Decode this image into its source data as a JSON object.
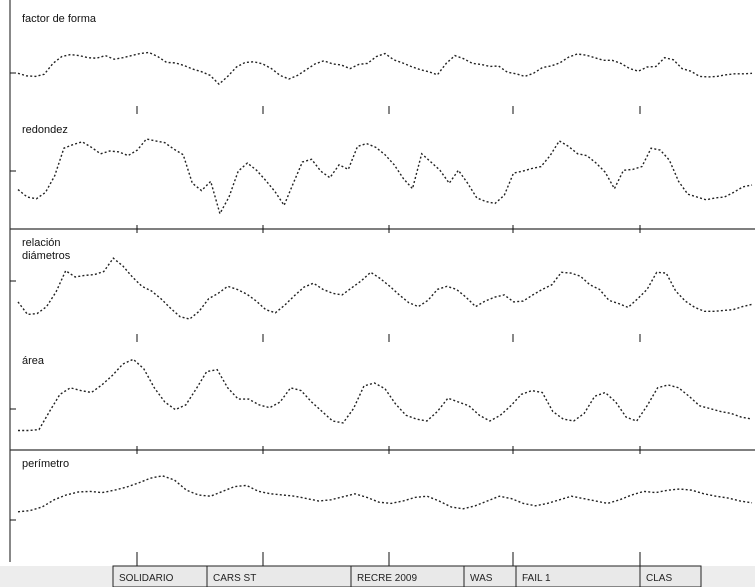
{
  "chart_data": {
    "type": "line",
    "panels": [
      {
        "title": "factor de forma",
        "y": [
          0.36,
          0.31,
          0.3,
          0.34,
          0.55,
          0.68,
          0.72,
          0.7,
          0.66,
          0.65,
          0.7,
          0.63,
          0.66,
          0.7,
          0.74,
          0.76,
          0.68,
          0.57,
          0.56,
          0.51,
          0.44,
          0.39,
          0.32,
          0.15,
          0.3,
          0.48,
          0.57,
          0.58,
          0.54,
          0.45,
          0.32,
          0.25,
          0.32,
          0.43,
          0.54,
          0.6,
          0.54,
          0.52,
          0.45,
          0.53,
          0.55,
          0.68,
          0.74,
          0.62,
          0.56,
          0.49,
          0.43,
          0.39,
          0.33,
          0.55,
          0.7,
          0.64,
          0.55,
          0.53,
          0.49,
          0.5,
          0.38,
          0.35,
          0.3,
          0.36,
          0.47,
          0.5,
          0.56,
          0.67,
          0.73,
          0.71,
          0.66,
          0.61,
          0.61,
          0.55,
          0.45,
          0.4,
          0.48,
          0.49,
          0.66,
          0.62,
          0.45,
          0.4,
          0.3,
          0.29,
          0.3,
          0.33,
          0.35,
          0.35,
          0.36
        ]
      },
      {
        "title": "redondez",
        "y": [
          0.33,
          0.25,
          0.23,
          0.3,
          0.48,
          0.78,
          0.82,
          0.85,
          0.79,
          0.72,
          0.75,
          0.74,
          0.7,
          0.76,
          0.88,
          0.86,
          0.84,
          0.77,
          0.71,
          0.4,
          0.32,
          0.42,
          0.07,
          0.25,
          0.53,
          0.62,
          0.54,
          0.43,
          0.31,
          0.16,
          0.4,
          0.63,
          0.66,
          0.53,
          0.46,
          0.6,
          0.55,
          0.8,
          0.83,
          0.79,
          0.71,
          0.6,
          0.45,
          0.34,
          0.72,
          0.63,
          0.54,
          0.4,
          0.54,
          0.4,
          0.24,
          0.2,
          0.18,
          0.27,
          0.51,
          0.53,
          0.56,
          0.58,
          0.7,
          0.86,
          0.8,
          0.72,
          0.7,
          0.62,
          0.52,
          0.34,
          0.54,
          0.55,
          0.58,
          0.78,
          0.76,
          0.65,
          0.42,
          0.28,
          0.25,
          0.22,
          0.24,
          0.25,
          0.3,
          0.36,
          0.38
        ]
      },
      {
        "title": "relación diámetros",
        "y": [
          0.36,
          0.2,
          0.21,
          0.3,
          0.49,
          0.76,
          0.68,
          0.7,
          0.71,
          0.75,
          0.92,
          0.82,
          0.68,
          0.56,
          0.5,
          0.4,
          0.28,
          0.17,
          0.14,
          0.24,
          0.4,
          0.47,
          0.56,
          0.52,
          0.46,
          0.37,
          0.26,
          0.22,
          0.32,
          0.44,
          0.55,
          0.6,
          0.52,
          0.47,
          0.45,
          0.54,
          0.63,
          0.74,
          0.66,
          0.56,
          0.45,
          0.35,
          0.3,
          0.38,
          0.52,
          0.56,
          0.52,
          0.42,
          0.3,
          0.37,
          0.42,
          0.45,
          0.36,
          0.37,
          0.45,
          0.52,
          0.58,
          0.74,
          0.73,
          0.69,
          0.58,
          0.52,
          0.38,
          0.34,
          0.29,
          0.4,
          0.52,
          0.74,
          0.73,
          0.5,
          0.37,
          0.29,
          0.24,
          0.24,
          0.25,
          0.26,
          0.3,
          0.33
        ]
      },
      {
        "title": "área",
        "y": [
          0.1,
          0.1,
          0.11,
          0.3,
          0.48,
          0.55,
          0.52,
          0.5,
          0.58,
          0.68,
          0.8,
          0.85,
          0.75,
          0.55,
          0.4,
          0.32,
          0.37,
          0.54,
          0.72,
          0.74,
          0.55,
          0.43,
          0.43,
          0.37,
          0.34,
          0.4,
          0.55,
          0.52,
          0.4,
          0.3,
          0.2,
          0.18,
          0.33,
          0.57,
          0.6,
          0.54,
          0.38,
          0.26,
          0.22,
          0.2,
          0.3,
          0.44,
          0.4,
          0.36,
          0.26,
          0.2,
          0.26,
          0.36,
          0.48,
          0.52,
          0.5,
          0.3,
          0.22,
          0.2,
          0.28,
          0.46,
          0.5,
          0.4,
          0.24,
          0.2,
          0.36,
          0.55,
          0.58,
          0.55,
          0.46,
          0.36,
          0.33,
          0.3,
          0.28,
          0.24,
          0.22
        ]
      },
      {
        "title": "perímetro",
        "y": [
          0.22,
          0.24,
          0.3,
          0.42,
          0.5,
          0.55,
          0.56,
          0.54,
          0.58,
          0.63,
          0.7,
          0.78,
          0.82,
          0.75,
          0.58,
          0.5,
          0.48,
          0.56,
          0.64,
          0.66,
          0.56,
          0.52,
          0.5,
          0.48,
          0.44,
          0.4,
          0.42,
          0.47,
          0.52,
          0.46,
          0.38,
          0.36,
          0.4,
          0.46,
          0.48,
          0.4,
          0.3,
          0.27,
          0.32,
          0.4,
          0.48,
          0.44,
          0.36,
          0.32,
          0.36,
          0.42,
          0.48,
          0.44,
          0.4,
          0.36,
          0.42,
          0.5,
          0.56,
          0.54,
          0.58,
          0.6,
          0.58,
          0.52,
          0.48,
          0.45,
          0.4,
          0.37
        ]
      }
    ],
    "categories": [
      "SOLIDARIO",
      "CARS ST",
      "RECRE 2009",
      "WAS",
      "FAIL 1",
      "CLAS"
    ],
    "grid": false,
    "legend": "none"
  }
}
